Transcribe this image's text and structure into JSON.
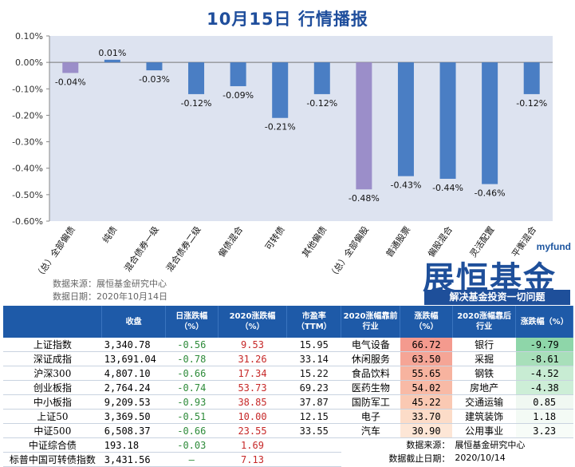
{
  "title": "10月15日  行情播报",
  "chart_data": {
    "type": "bar",
    "categories": [
      "（总）全部偏债",
      "纯债",
      "混合债券一级",
      "混合债券二级",
      "偏债混合",
      "可转债",
      "其他偏债",
      "（总）全部偏股",
      "普通股票",
      "偏股混合",
      "灵活配置",
      "平衡混合"
    ],
    "values": [
      -0.04,
      0.01,
      -0.03,
      -0.12,
      -0.09,
      -0.21,
      -0.12,
      -0.48,
      -0.43,
      -0.44,
      -0.46,
      -0.12
    ],
    "value_labels": [
      "-0.04%",
      "0.01%",
      "-0.03%",
      "-0.12%",
      "-0.09%",
      "-0.21%",
      "-0.12%",
      "-0.48%",
      "-0.43%",
      "-0.44%",
      "-0.46%",
      "-0.12%"
    ],
    "yticks": [
      "0.10%",
      "0.00%",
      "-0.10%",
      "-0.20%",
      "-0.30%",
      "-0.40%",
      "-0.50%",
      "-0.60%"
    ],
    "ylim": [
      -0.6,
      0.1
    ],
    "colors": {
      "total": "#9b8ec9",
      "normal": "#4a7ec4",
      "plot_bg": "#dde3f0"
    },
    "highlight_indices": [
      0,
      7
    ]
  },
  "source": {
    "line1": "数据来源：展恒基金研究中心",
    "line2": "数据日期：2020年10月14日"
  },
  "logo": {
    "brand": "myfund",
    "name": "展恒基金",
    "slogan": "解决基金投资一切问题"
  },
  "index_table": {
    "headers": [
      "",
      "收盘",
      "日涨跌幅\n（%）",
      "2020涨跌幅\n（%）",
      "市盈率\n（TTM）"
    ],
    "rows": [
      [
        "上证指数",
        "3,340.78",
        "-0.56",
        "9.53",
        "15.95"
      ],
      [
        "深证成指",
        "13,691.04",
        "-0.78",
        "31.26",
        "33.14"
      ],
      [
        "沪深300",
        "4,807.10",
        "-0.66",
        "17.34",
        "15.22"
      ],
      [
        "创业板指",
        "2,764.24",
        "-0.74",
        "53.73",
        "69.23"
      ],
      [
        "中小板指",
        "9,209.53",
        "-0.93",
        "38.85",
        "37.87"
      ],
      [
        "上证50",
        "3,369.50",
        "-0.51",
        "10.00",
        "12.15"
      ],
      [
        "中证500",
        "6,508.37",
        "-0.66",
        "23.55",
        "33.55"
      ],
      [
        "中证综合债",
        "193.18",
        "-0.03",
        "1.69",
        ""
      ],
      [
        "标普中国可转债指数",
        "3,431.56",
        "–",
        "7.13",
        ""
      ]
    ]
  },
  "industry_table": {
    "headers": [
      "2020涨幅靠前\n行业",
      "涨跌幅\n（%）",
      "2020涨幅靠后\n行业",
      "涨跌幅（%）"
    ],
    "rows": [
      [
        "电气设备",
        "66.72",
        "银行",
        "-9.79"
      ],
      [
        "休闲服务",
        "63.50",
        "采掘",
        "-8.61"
      ],
      [
        "食品饮料",
        "55.65",
        "钢铁",
        "-4.52"
      ],
      [
        "医药生物",
        "54.02",
        "房地产",
        "-4.38"
      ],
      [
        "国防军工",
        "45.22",
        "交通运输",
        "0.85"
      ],
      [
        "电子",
        "33.70",
        "建筑装饰",
        "1.18"
      ],
      [
        "汽车",
        "30.90",
        "公用事业",
        "3.23"
      ]
    ],
    "foot": [
      [
        "数据来源：",
        "展恒基金研究中心"
      ],
      [
        "数据截止日期：",
        "2020/10/14"
      ]
    ],
    "top_colors": [
      "#f49a8e",
      "#f5a596",
      "#f7b39f",
      "#f8baa6",
      "#fac9b3",
      "#fcdcc8",
      "#fde6d6"
    ],
    "bottom_colors": [
      "#8ed6a9",
      "#a8dfba",
      "#c8ecd3",
      "#cdeed7",
      "#f0f8f2",
      "#f3faf5",
      "#f7fcf8"
    ]
  }
}
